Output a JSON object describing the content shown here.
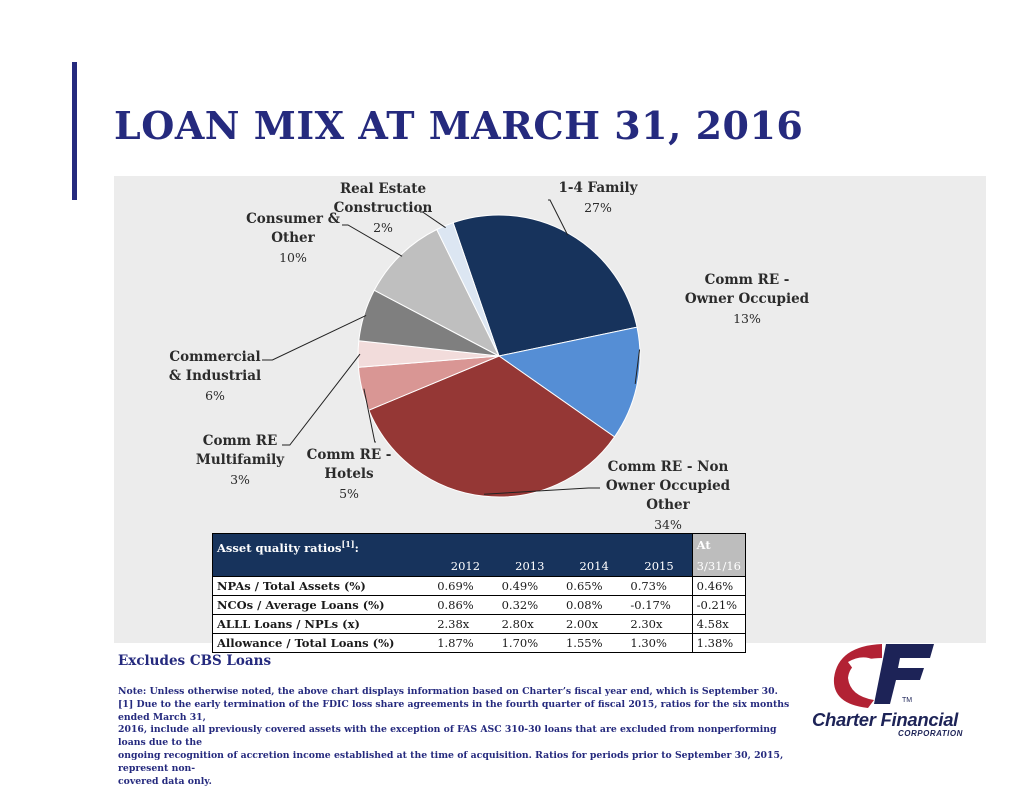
{
  "slide": {
    "title": "LOAN MIX AT MARCH 31, 2016",
    "excludes": "Excludes CBS Loans",
    "note_lines": [
      "Note:  Unless otherwise noted, the above chart displays information based on Charter’s fiscal year end, which is September 30.",
      "[1] Due to the early termination of the FDIC loss share agreements in the fourth quarter of fiscal 2015, ratios for the six months ended March 31,",
      "2016, include all previously covered assets with the exception of FAS ASC 310-30 loans that are excluded from nonperforming loans due to the",
      "ongoing recognition of accretion income established at the time of acquisition. Ratios for periods prior to September 30, 2015, represent non-",
      "covered data only."
    ]
  },
  "chart_data": {
    "type": "pie",
    "slices": [
      {
        "label": "1-4 Family",
        "value": 27,
        "pct_text": "27%",
        "color": "#17335c"
      },
      {
        "label": "Comm RE - Owner Occupied",
        "value": 13,
        "pct_text": "13%",
        "color": "#558ed5"
      },
      {
        "label": "Comm RE - Non Owner Occupied Other",
        "value": 34,
        "pct_text": "34%",
        "color": "#953735"
      },
      {
        "label": "Comm RE - Hotels",
        "value": 5,
        "pct_text": "5%",
        "color": "#d99694"
      },
      {
        "label": "Comm RE Multifamily",
        "value": 3,
        "pct_text": "3%",
        "color": "#f2dcdb"
      },
      {
        "label": "Commercial & Industrial",
        "value": 6,
        "pct_text": "6%",
        "color": "#7f7f7f"
      },
      {
        "label": "Consumer & Other",
        "value": 10,
        "pct_text": "10%",
        "color": "#bfbfbf"
      },
      {
        "label": "Real Estate Construction",
        "value": 2,
        "pct_text": "2%",
        "color": "#dce6f2"
      }
    ],
    "label_lines": [
      [
        "1-4 Family"
      ],
      [
        "Comm RE -",
        "Owner Occupied"
      ],
      [
        "Comm RE - Non",
        "Owner Occupied",
        "Other"
      ],
      [
        "Comm RE -",
        "Hotels"
      ],
      [
        "Comm RE",
        "Multifamily"
      ],
      [
        "Commercial",
        "& Industrial"
      ],
      [
        "Consumer &",
        "Other"
      ],
      [
        "Real Estate",
        "Construction"
      ]
    ]
  },
  "ratio_table": {
    "title": "Asset quality ratios",
    "footnote_ref": "[1]",
    "title_suffix": ":",
    "at_label": "At",
    "at_date": "3/31/16",
    "years": [
      "2012",
      "2013",
      "2014",
      "2015"
    ],
    "rows": [
      {
        "label": "NPAs / Total Assets (%)",
        "values": [
          "0.69%",
          "0.49%",
          "0.65%",
          "0.73%"
        ],
        "at": "0.46%"
      },
      {
        "label": "NCOs / Average Loans (%)",
        "values": [
          "0.86%",
          "0.32%",
          "0.08%",
          "-0.17%"
        ],
        "at": "-0.21%"
      },
      {
        "label": "ALLL Loans / NPLs (x)",
        "values": [
          "2.38x",
          "2.80x",
          "2.00x",
          "2.30x"
        ],
        "at": "4.58x"
      },
      {
        "label": "Allowance / Total Loans (%)",
        "values": [
          "1.87%",
          "1.70%",
          "1.55%",
          "1.30%"
        ],
        "at": "1.38%"
      }
    ]
  },
  "logo": {
    "name": "Charter Financial",
    "corp": "CORPORATION",
    "tm": "TM",
    "colors": {
      "red": "#b22234",
      "navy": "#1d2357"
    }
  },
  "colors": {
    "title": "#252a7e",
    "panel": "#ececec",
    "table_header": "#17335c",
    "at_header": "#bdbdbd"
  }
}
